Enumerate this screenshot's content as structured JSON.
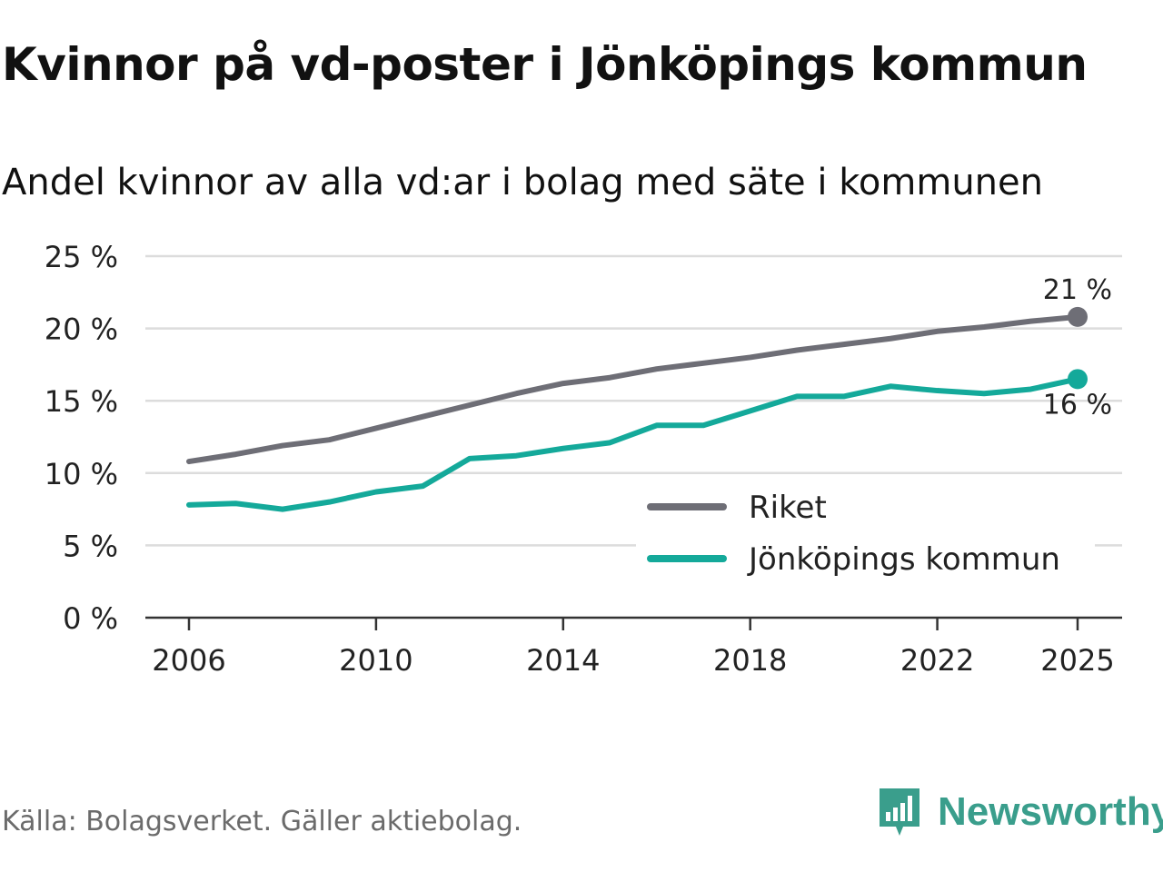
{
  "title": "Kvinnor på vd-poster i Jönköpings kommun",
  "subtitle": "Andel kvinnor av alla vd:ar i bolag med säte i kommunen",
  "source": "Källa: Bolagsverket. Gäller aktiebolag.",
  "brand": "Newsworthy",
  "chart_data": {
    "type": "line",
    "title": "Kvinnor på vd-poster i Jönköpings kommun",
    "subtitle": "Andel kvinnor av alla vd:ar i bolag med säte i kommunen",
    "xlabel": "",
    "ylabel": "",
    "x": [
      2006,
      2007,
      2008,
      2009,
      2010,
      2011,
      2012,
      2013,
      2014,
      2015,
      2016,
      2017,
      2018,
      2019,
      2020,
      2021,
      2022,
      2023,
      2024,
      2025
    ],
    "xticks": [
      2006,
      2010,
      2014,
      2018,
      2022,
      2025
    ],
    "xtick_labels": [
      "2006",
      "2010",
      "2014",
      "2018",
      "2022",
      "2025"
    ],
    "ylim": [
      0,
      25
    ],
    "yticks": [
      0,
      5,
      10,
      15,
      20,
      25
    ],
    "ytick_labels": [
      "0 %",
      "5 %",
      "10 %",
      "15 %",
      "20 %",
      "25 %"
    ],
    "grid": true,
    "legend_position": "bottom-right",
    "series": [
      {
        "name": "Riket",
        "color": "#6e6e76",
        "values": [
          10.8,
          11.3,
          11.9,
          12.3,
          13.1,
          13.9,
          14.7,
          15.5,
          16.2,
          16.6,
          17.2,
          17.6,
          18.0,
          18.5,
          18.9,
          19.3,
          19.8,
          20.1,
          20.5,
          20.8
        ],
        "end_label": "21 %"
      },
      {
        "name": "Jönköpings kommun",
        "color": "#14a99a",
        "values": [
          7.8,
          7.9,
          7.5,
          8.0,
          8.7,
          9.1,
          11.0,
          11.2,
          11.7,
          12.1,
          13.3,
          13.3,
          14.3,
          15.3,
          15.3,
          16.0,
          15.7,
          15.5,
          15.8,
          16.5
        ],
        "end_label": "16 %"
      }
    ]
  }
}
